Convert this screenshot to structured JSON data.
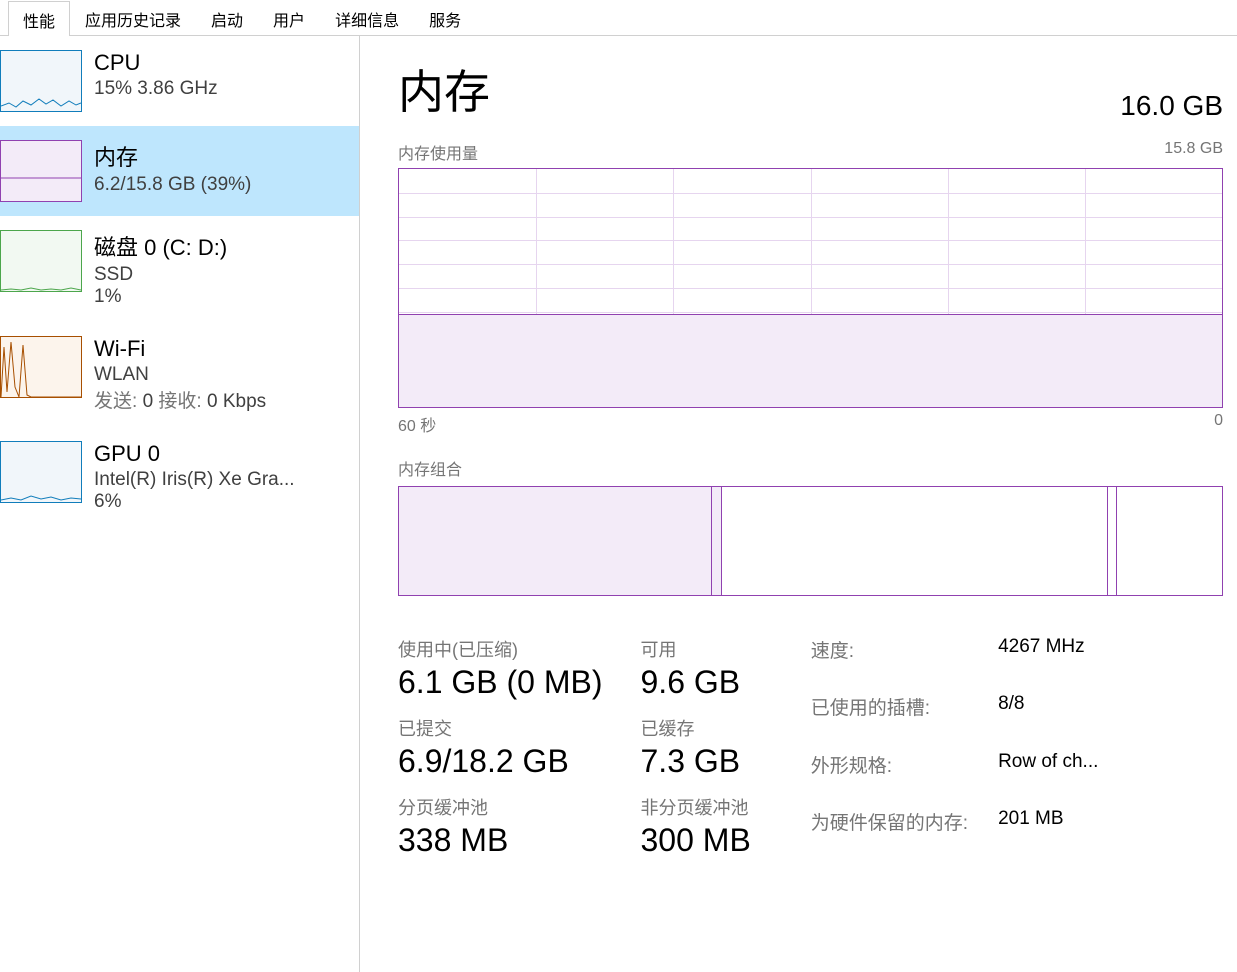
{
  "tabs": [
    "性能",
    "应用历史记录",
    "启动",
    "用户",
    "详细信息",
    "服务"
  ],
  "active_tab_index": 0,
  "sidebar": {
    "items": [
      {
        "title": "CPU",
        "line1": "15% 3.86 GHz",
        "thumb_color": "#117dbb",
        "thumb_fill": "#f1f6fa"
      },
      {
        "title": "内存",
        "line1": "6.2/15.8 GB (39%)",
        "thumb_color": "#9041b0",
        "thumb_fill": "#f3ebf8",
        "selected": true
      },
      {
        "title": "磁盘 0 (C: D:)",
        "line1": "SSD",
        "line2": "1%",
        "thumb_color": "#4ca64c",
        "thumb_fill": "#f2f9f2"
      },
      {
        "title": "Wi-Fi",
        "line1": "WLAN",
        "send_label": "发送:",
        "send_value": "0",
        "recv_label": "接收:",
        "recv_value": "0 Kbps",
        "thumb_color": "#a74f01",
        "thumb_fill": "#fcf4ec"
      },
      {
        "title": "GPU 0",
        "line1": "Intel(R) Iris(R) Xe Gra...",
        "line2": "6%",
        "thumb_color": "#117dbb",
        "thumb_fill": "#f1f6fa"
      }
    ]
  },
  "main": {
    "title": "内存",
    "total": "16.0 GB",
    "usage_chart": {
      "label": "内存使用量",
      "max_label": "15.8 GB",
      "x_start": "60 秒",
      "x_end": "0",
      "border_color": "#9041b0",
      "grid_color": "#e6d5ef",
      "fill_color": "#f3ebf8",
      "fill_percent": 39,
      "grid_rows": 10,
      "grid_cols": 6
    },
    "composition": {
      "label": "内存组合",
      "border_color": "#9041b0",
      "segments": [
        {
          "width_pct": 38,
          "bg": "#f3ebf8"
        },
        {
          "width_pct": 1.2,
          "bg": "#f3ebf8"
        },
        {
          "width_pct": 47,
          "bg": "#ffffff"
        },
        {
          "width_pct": 1,
          "bg": "#ffffff"
        },
        {
          "width_pct": 12.8,
          "bg": "#ffffff"
        }
      ]
    },
    "stats_left": [
      {
        "label": "使用中(已压缩)",
        "value": "6.1 GB (0 MB)"
      },
      {
        "label": "可用",
        "value": "9.6 GB"
      },
      {
        "label": "已提交",
        "value": "6.9/18.2 GB"
      },
      {
        "label": "已缓存",
        "value": "7.3 GB"
      },
      {
        "label": "分页缓冲池",
        "value": "338 MB"
      },
      {
        "label": "非分页缓冲池",
        "value": "300 MB"
      }
    ],
    "stats_right": [
      {
        "label": "速度:",
        "value": "4267 MHz"
      },
      {
        "label": "已使用的插槽:",
        "value": "8/8"
      },
      {
        "label": "外形规格:",
        "value": "Row of ch..."
      },
      {
        "label": "为硬件保留的内存:",
        "value": "201 MB"
      }
    ]
  }
}
